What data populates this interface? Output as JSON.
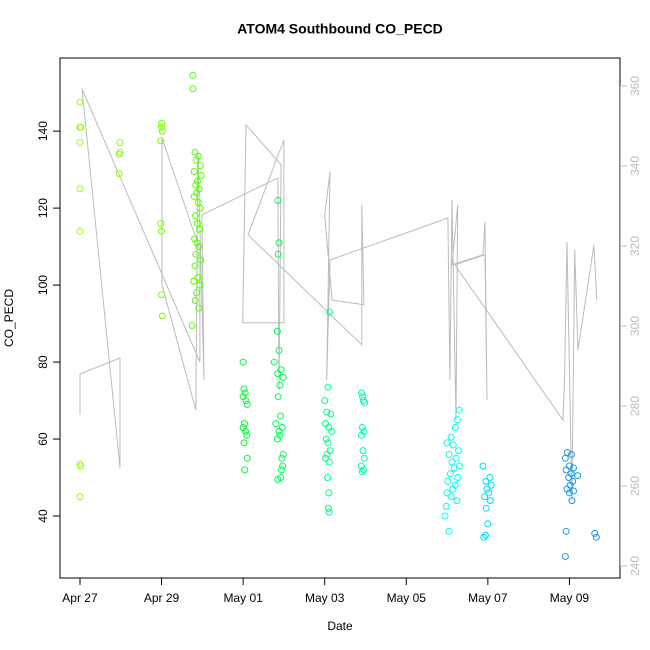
{
  "chart_data": {
    "type": "scatter",
    "title": "ATOM4 Southbound CO_PECD",
    "xlabel": "Date",
    "ylabel": "CO_PECD",
    "xlim": [
      -0.49,
      13.24
    ],
    "xticks": [
      {
        "value": 0,
        "label": "Apr 27"
      },
      {
        "value": 2,
        "label": "Apr 29"
      },
      {
        "value": 4,
        "label": "May 01"
      },
      {
        "value": 6,
        "label": "May 03"
      },
      {
        "value": 8,
        "label": "May 05"
      },
      {
        "value": 10,
        "label": "May 07"
      },
      {
        "value": 12,
        "label": "May 09"
      }
    ],
    "ylim": [
      23.9,
      159.0
    ],
    "yticks": [
      40,
      60,
      80,
      100,
      120,
      140
    ],
    "y2lim": [
      237,
      367
    ],
    "y2ticks": [
      240,
      260,
      280,
      300,
      320,
      340,
      360
    ],
    "y2color": "#bbbbbb",
    "series": [
      {
        "color": "#99ff00",
        "x": [
          0,
          0,
          0.02,
          0,
          0,
          0,
          0,
          0.02,
          0
        ],
        "values": [
          147.5,
          141,
          141,
          137,
          125,
          114,
          53.5,
          53,
          45
        ]
      },
      {
        "color": "#88ff00",
        "x": [
          0.98,
          0.98,
          0.96,
          0.96
        ],
        "values": [
          137,
          134.5,
          134,
          129
        ]
      },
      {
        "color": "#77ff00",
        "x": [
          2.0,
          2.0,
          2.02,
          1.98,
          1.98,
          2.0,
          2.0,
          2.02
        ],
        "values": [
          142,
          141,
          140,
          137.5,
          116,
          114,
          97.5,
          92
        ]
      },
      {
        "color": "#55ff00",
        "x": [
          2.77,
          2.77,
          2.82,
          2.9,
          2.85,
          2.95,
          2.8,
          2.97,
          2.88,
          2.84,
          2.92,
          2.86,
          2.8,
          2.9,
          2.95,
          2.83,
          2.88,
          2.93,
          2.81,
          2.87,
          2.91,
          2.84,
          2.96,
          2.82,
          2.89,
          2.79,
          2.94,
          2.86,
          2.83,
          2.91,
          2.75
        ],
        "values": [
          154.5,
          151,
          134.5,
          133.5,
          132.5,
          131,
          129.5,
          128.5,
          127,
          126,
          125,
          124,
          123,
          121.5,
          120,
          118,
          116,
          114.5,
          112,
          111,
          110,
          108,
          106.5,
          105,
          102,
          101,
          100,
          98,
          96,
          94,
          89.5
        ]
      },
      {
        "color": "#00ff33",
        "x": [
          4.0,
          4.02,
          4.05,
          4.0,
          4.07,
          4.1,
          4.03,
          4.0,
          4.06,
          4.09,
          4.02,
          4.1,
          4.04
        ],
        "values": [
          80,
          73,
          72,
          71,
          70,
          69,
          64,
          63,
          62,
          61,
          59,
          55,
          52
        ]
      },
      {
        "color": "#00ff55",
        "x": [
          4.85,
          4.88,
          4.86,
          4.84,
          4.88,
          4.76,
          4.93,
          4.85,
          4.98,
          4.9,
          4.86,
          4.92,
          4.8,
          4.96,
          4.88,
          4.9,
          4.84,
          4.98,
          4.95,
          4.97,
          4.94,
          4.92,
          4.85
        ],
        "values": [
          122,
          111,
          108,
          88,
          83,
          80,
          78,
          77,
          76,
          74,
          71,
          66,
          64,
          63,
          62,
          61,
          60,
          56,
          55,
          53,
          52,
          50,
          49.5
        ]
      },
      {
        "color": "#00ff88",
        "x": [
          6.12,
          6.08,
          6.0,
          6.05,
          6.15,
          6.02,
          6.1,
          6.17,
          6.04,
          6.08,
          6.13,
          6.06,
          6.02,
          6.11,
          6.07,
          6.1,
          6.09,
          6.11
        ],
        "values": [
          93,
          73.5,
          70,
          67,
          66.5,
          64,
          63,
          62,
          60,
          59,
          57,
          56,
          55,
          54,
          50,
          46,
          42,
          41
        ]
      },
      {
        "color": "#00ffaa",
        "x": [
          6.9,
          6.93,
          6.95,
          6.98,
          6.92,
          6.96,
          6.9,
          6.94,
          6.97,
          6.9,
          6.95,
          6.92
        ],
        "values": [
          72,
          71,
          70,
          69.5,
          63,
          62,
          61,
          57,
          55,
          53,
          52,
          51.5
        ]
      },
      {
        "color": "#00ffee",
        "x": [
          9.3,
          9.25,
          9.2,
          9.1,
          9.0,
          9.15,
          9.28,
          9.05,
          9.22,
          9.12,
          9.3,
          9.18,
          9.08,
          9.26,
          9.02,
          9.2,
          9.14,
          9.0,
          9.1,
          9.24,
          8.98,
          8.95,
          9.05
        ],
        "values": [
          67.5,
          65,
          63,
          60.5,
          59,
          58.5,
          57,
          56,
          55,
          54,
          53,
          52.5,
          51,
          50,
          49,
          48,
          47,
          46,
          45,
          44,
          42.5,
          40,
          36
        ]
      },
      {
        "color": "#00ddff",
        "x": [
          9.88,
          10.05,
          9.95,
          10.08,
          9.98,
          10.02,
          9.92,
          10.06,
          9.96,
          10.0,
          9.94,
          9.9
        ],
        "values": [
          53,
          50,
          49,
          48,
          47,
          46,
          45,
          44,
          42,
          38,
          35,
          34.5
        ]
      },
      {
        "color": "#1a99e6",
        "x": [
          11.95,
          12.05,
          11.9,
          12.0,
          12.1,
          11.92,
          12.04,
          12.2,
          11.98,
          12.08,
          12.02,
          11.94,
          12.1,
          12.0,
          12.06,
          11.92,
          12.62,
          12.66,
          11.9
        ],
        "values": [
          56.5,
          56,
          55,
          53,
          52.5,
          52,
          51,
          50.5,
          50,
          49,
          48,
          47,
          46.5,
          46,
          44,
          36,
          35.5,
          34.5,
          29.5
        ]
      }
    ],
    "line": {
      "color": "#bbbbbb",
      "axis": "y2",
      "x": [
        0.0,
        0.0,
        0.98,
        0.98,
        0.05,
        2.94,
        2.94,
        2.01,
        2.01,
        2.84,
        2.89,
        3.04,
        2.99,
        4.85,
        4.88,
        4.93,
        4.07,
        3.99,
        5.0,
        5.0,
        4.12,
        6.91,
        6.91,
        6.96,
        6.18,
        6.0,
        6.13,
        6.05,
        6.13,
        9.02,
        9.07,
        9.12,
        9.22,
        9.26,
        9.12,
        9.88,
        9.93,
        9.98,
        9.93,
        9.19,
        11.84,
        11.88,
        11.94,
        12.06,
        12.13,
        12.21,
        12.6,
        12.67
      ],
      "values": [
        277.8,
        288.0,
        292.0,
        264.5,
        359.3,
        291.0,
        319.0,
        347.0,
        310.3,
        279.0,
        343.5,
        286.5,
        327.8,
        337.0,
        284.0,
        340.3,
        350.3,
        300.8,
        300.8,
        346.5,
        322.8,
        295.3,
        330.3,
        305.3,
        306.5,
        327.8,
        338.5,
        286.5,
        316.5,
        327.0,
        286.5,
        331.5,
        276.5,
        330.3,
        315.3,
        317.8,
        326.0,
        281.5,
        317.8,
        315.3,
        276.5,
        286.5,
        321.0,
        256.5,
        319.0,
        294.0,
        320.3,
        306.5
      ]
    }
  }
}
